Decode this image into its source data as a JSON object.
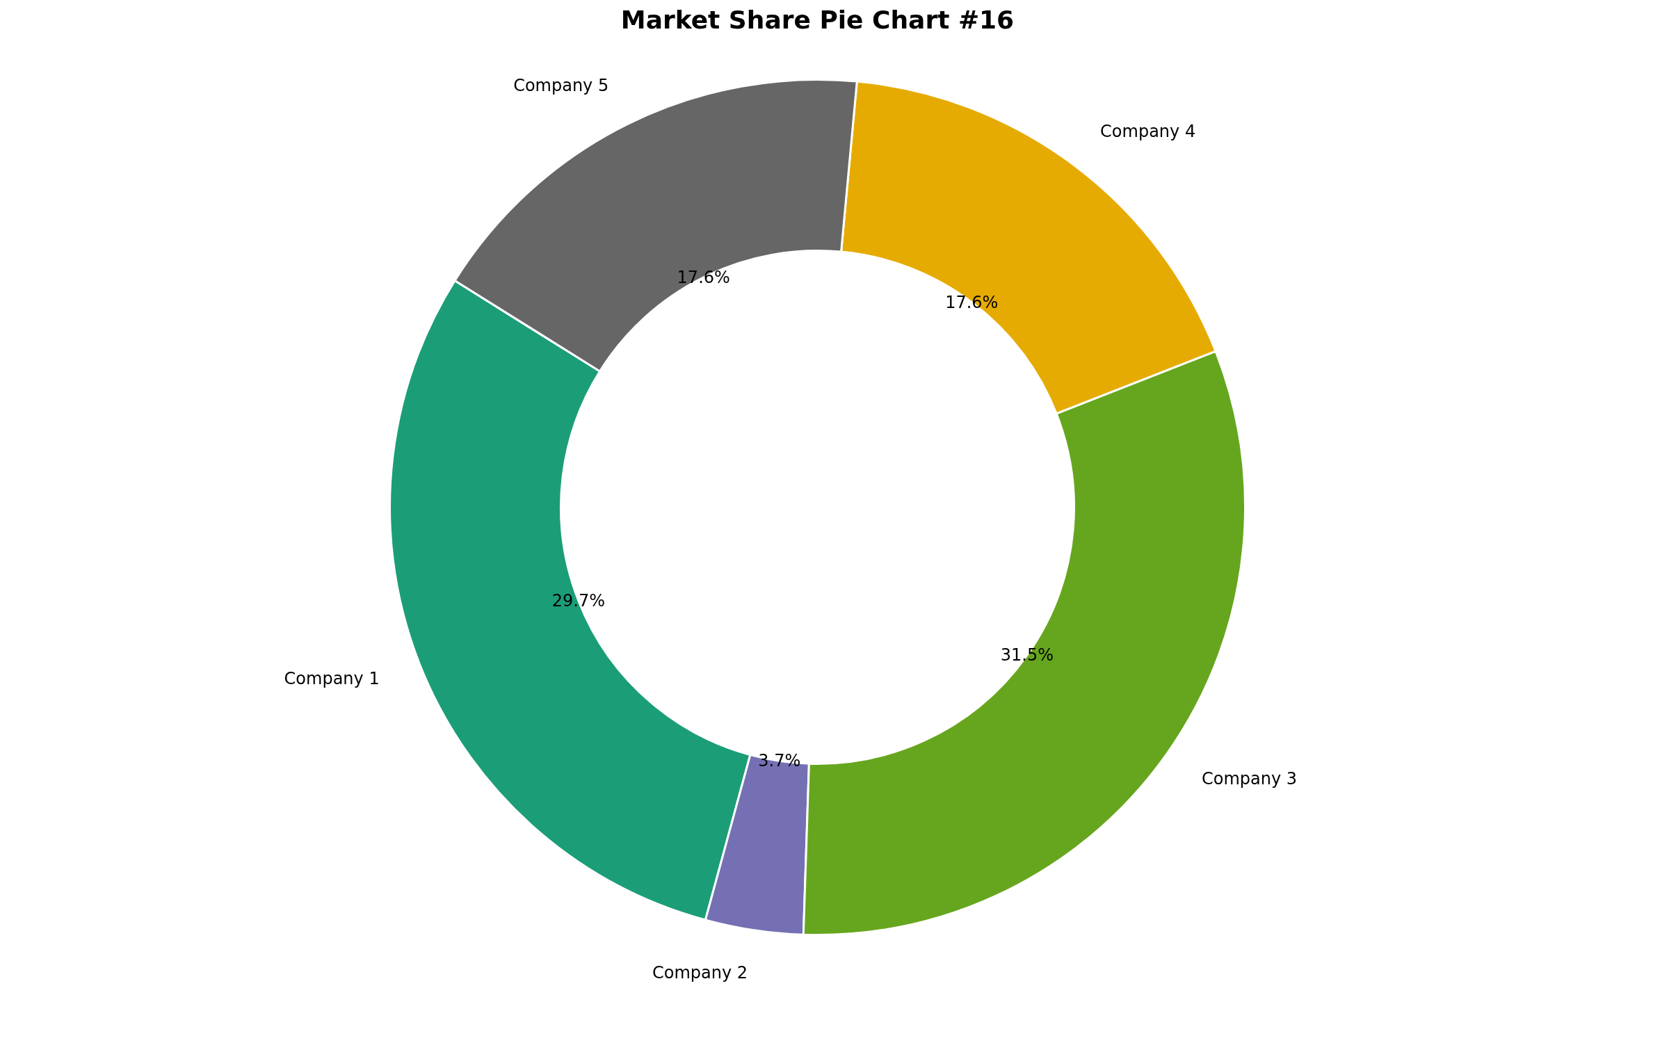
{
  "chart_data": {
    "type": "donut",
    "title": "Market Share Pie Chart #16",
    "categories": [
      "Company 1",
      "Company 2",
      "Company 3",
      "Company 4",
      "Company 5"
    ],
    "values": [
      29.7,
      3.7,
      31.5,
      17.6,
      17.6
    ],
    "colors": [
      "#1b9e77",
      "#7570b3",
      "#66a61e",
      "#e6ab02",
      "#666666"
    ],
    "value_labels": [
      "29.7%",
      "3.7%",
      "31.5%",
      "17.6%",
      "17.6%"
    ],
    "legend": false
  }
}
